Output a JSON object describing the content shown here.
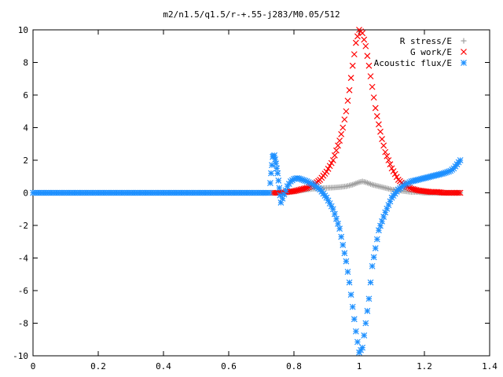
{
  "chart_data": {
    "type": "scatter",
    "title": "m2/n1.5/q1.5/r-+.55-j283/M0.05/512",
    "xlabel": "",
    "ylabel": "",
    "xlim": [
      0,
      1.4
    ],
    "ylim": [
      -10,
      10
    ],
    "x_ticks": [
      0,
      0.2,
      0.4,
      0.6,
      0.8,
      1,
      1.2,
      1.4
    ],
    "x_tick_labels": [
      "0",
      "0.2",
      "0.4",
      "0.6",
      "0.8",
      "1",
      "1.2",
      "1.4"
    ],
    "y_ticks": [
      -10,
      -8,
      -6,
      -4,
      -2,
      0,
      2,
      4,
      6,
      8,
      10
    ],
    "y_tick_labels": [
      "-10",
      "-8",
      "-6",
      "-4",
      "-2",
      "0",
      "2",
      "4",
      "6",
      "8",
      "10"
    ],
    "grid": false,
    "legend_position": "top-right",
    "series": [
      {
        "name": "R stress/E",
        "marker": "plus",
        "color": "#a0a0a0",
        "x": [
          0.735,
          0.76,
          0.78,
          0.8,
          0.82,
          0.84,
          0.86,
          0.88,
          0.9,
          0.92,
          0.94,
          0.96,
          0.98,
          1.0,
          1.01,
          1.02,
          1.04,
          1.06,
          1.08,
          1.1,
          1.12,
          1.14,
          1.16,
          1.18,
          1.2,
          1.22,
          1.24,
          1.26,
          1.28,
          1.3,
          1.31
        ],
        "y": [
          0.0,
          0.0,
          0.05,
          0.1,
          0.15,
          0.2,
          0.25,
          0.28,
          0.3,
          0.32,
          0.35,
          0.4,
          0.5,
          0.65,
          0.7,
          0.65,
          0.5,
          0.4,
          0.3,
          0.2,
          0.15,
          0.1,
          0.05,
          0.05,
          0.0,
          0.0,
          0.0,
          0.0,
          0.0,
          0.0,
          0.0
        ]
      },
      {
        "name": "G work/E",
        "marker": "cross",
        "color": "#ff0000",
        "x": [
          0.735,
          0.76,
          0.78,
          0.8,
          0.82,
          0.84,
          0.86,
          0.88,
          0.9,
          0.92,
          0.94,
          0.95,
          0.96,
          0.97,
          0.98,
          0.99,
          1.0,
          1.01,
          1.02,
          1.03,
          1.04,
          1.05,
          1.06,
          1.07,
          1.08,
          1.1,
          1.12,
          1.14,
          1.16,
          1.18,
          1.2,
          1.22,
          1.24,
          1.26,
          1.28,
          1.3,
          1.31
        ],
        "y": [
          0.0,
          0.0,
          0.05,
          0.1,
          0.2,
          0.3,
          0.5,
          0.8,
          1.3,
          2.0,
          3.2,
          4.0,
          5.0,
          6.3,
          7.8,
          9.2,
          10.0,
          9.8,
          9.0,
          7.8,
          6.5,
          5.2,
          4.2,
          3.3,
          2.5,
          1.5,
          0.8,
          0.45,
          0.25,
          0.15,
          0.1,
          0.05,
          0.05,
          0.0,
          0.0,
          0.0,
          0.0
        ]
      },
      {
        "name": "Acoustic flux/E",
        "marker": "star",
        "color": "#1e90ff",
        "x": [
          0.0,
          0.05,
          0.1,
          0.15,
          0.2,
          0.25,
          0.3,
          0.35,
          0.4,
          0.45,
          0.5,
          0.55,
          0.6,
          0.65,
          0.7,
          0.725,
          0.73,
          0.735,
          0.74,
          0.745,
          0.75,
          0.755,
          0.76,
          0.77,
          0.78,
          0.79,
          0.8,
          0.81,
          0.82,
          0.84,
          0.86,
          0.88,
          0.9,
          0.92,
          0.94,
          0.96,
          0.97,
          0.98,
          0.99,
          1.0,
          1.01,
          1.02,
          1.03,
          1.04,
          1.06,
          1.08,
          1.1,
          1.12,
          1.14,
          1.16,
          1.18,
          1.2,
          1.22,
          1.24,
          1.26,
          1.28,
          1.29,
          1.3,
          1.31
        ],
        "y": [
          0.0,
          0.0,
          0.0,
          0.0,
          0.0,
          0.0,
          0.0,
          0.0,
          0.0,
          0.0,
          0.0,
          0.0,
          0.0,
          0.0,
          0.0,
          0.0,
          1.2,
          2.2,
          2.3,
          1.8,
          1.2,
          0.3,
          -0.6,
          -0.1,
          0.4,
          0.7,
          0.85,
          0.9,
          0.85,
          0.7,
          0.5,
          0.2,
          -0.3,
          -1.0,
          -2.2,
          -4.2,
          -5.5,
          -7.0,
          -8.5,
          -9.8,
          -9.5,
          -8.0,
          -6.5,
          -4.5,
          -2.3,
          -1.2,
          -0.3,
          0.2,
          0.5,
          0.7,
          0.8,
          0.9,
          1.0,
          1.1,
          1.2,
          1.35,
          1.5,
          1.75,
          2.0
        ]
      }
    ]
  }
}
